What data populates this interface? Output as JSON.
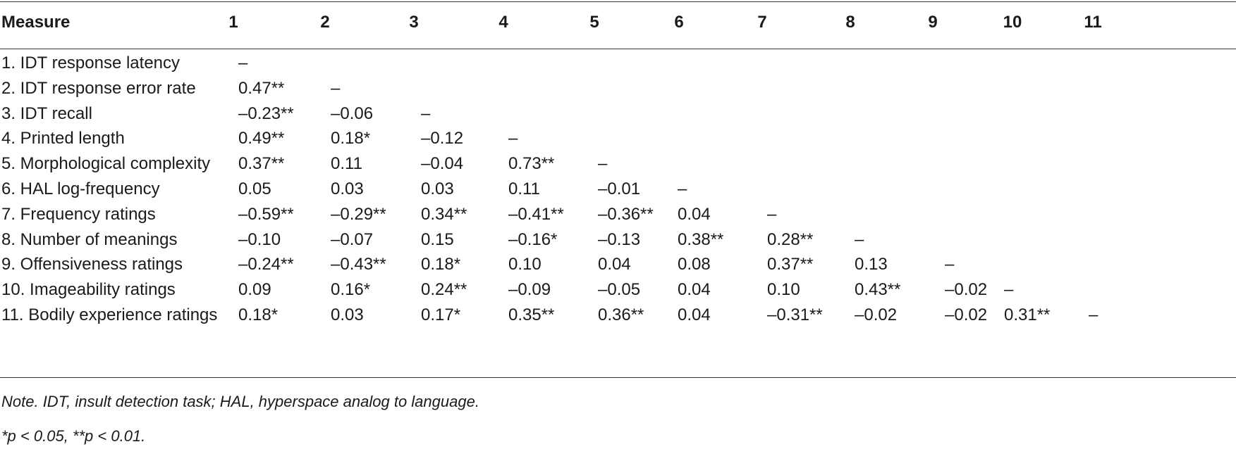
{
  "table": {
    "header": [
      "Measure",
      "1",
      "2",
      "3",
      "4",
      "5",
      "6",
      "7",
      "8",
      "9",
      "10",
      "11"
    ],
    "rows": [
      {
        "label": "1. IDT response latency",
        "cells": [
          "–"
        ]
      },
      {
        "label": "2. IDT response error rate",
        "cells": [
          "0.47**",
          "–"
        ]
      },
      {
        "label": "3. IDT recall",
        "cells": [
          "–0.23**",
          "–0.06",
          "–"
        ]
      },
      {
        "label": "4. Printed length",
        "cells": [
          "0.49**",
          "0.18*",
          "–0.12",
          "–"
        ]
      },
      {
        "label": "5. Morphological complexity",
        "cells": [
          "0.37**",
          "0.11",
          "–0.04",
          "0.73**",
          "–"
        ]
      },
      {
        "label": "6. HAL log-frequency",
        "cells": [
          "0.05",
          "0.03",
          "0.03",
          "0.11",
          "–0.01",
          "–"
        ]
      },
      {
        "label": "7. Frequency ratings",
        "cells": [
          "–0.59**",
          "–0.29**",
          "0.34**",
          "–0.41**",
          "–0.36**",
          "0.04",
          "–"
        ]
      },
      {
        "label": "8. Number of meanings",
        "cells": [
          "–0.10",
          "–0.07",
          "0.15",
          "–0.16*",
          "–0.13",
          "0.38**",
          "0.28**",
          "–"
        ]
      },
      {
        "label": "9. Offensiveness ratings",
        "cells": [
          "–0.24**",
          "–0.43**",
          "0.18*",
          "0.10",
          "0.04",
          "0.08",
          "0.37**",
          "0.13",
          "–"
        ]
      },
      {
        "label": "10. Imageability ratings",
        "cells": [
          "0.09",
          "0.16*",
          "0.24**",
          "–0.09",
          "–0.05",
          "0.04",
          "0.10",
          "0.43**",
          "–0.02",
          "–"
        ]
      },
      {
        "label": "11. Bodily experience ratings",
        "cells": [
          "0.18*",
          "0.03",
          "0.17*",
          "0.35**",
          "0.36**",
          "0.04",
          "–0.31**",
          "–0.02",
          "–0.02",
          "0.31**",
          "–"
        ]
      }
    ]
  },
  "notes": [
    "Note. IDT, insult detection task; HAL, hyperspace analog to language.",
    "*p < 0.05,  **p < 0.01."
  ]
}
